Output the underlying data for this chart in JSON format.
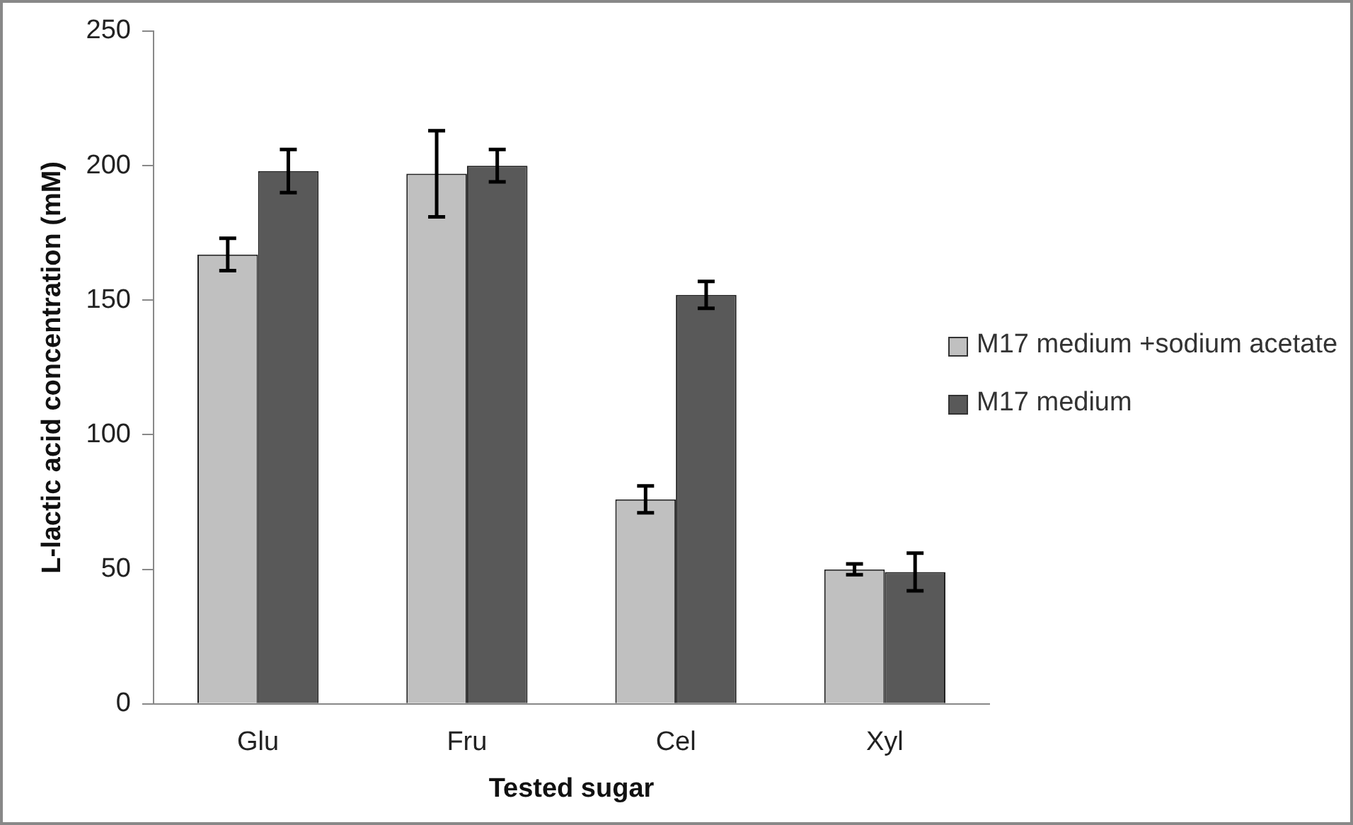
{
  "chart_data": {
    "type": "bar",
    "xlabel": "Tested sugar",
    "ylabel": "L-lactic acid concentration (mM)",
    "categories": [
      "Glu",
      "Fru",
      "Cel",
      "Xyl"
    ],
    "series": [
      {
        "name": "M17 medium +sodium acetate",
        "color": "#c0c0c0",
        "values": [
          167,
          197,
          76,
          50
        ],
        "errors": [
          6,
          16,
          5,
          2
        ]
      },
      {
        "name": "M17 medium",
        "color": "#595959",
        "values": [
          198,
          200,
          152,
          49
        ],
        "errors": [
          8,
          6,
          5,
          7
        ]
      }
    ],
    "ylim": [
      0,
      250
    ],
    "yticks": [
      0,
      50,
      100,
      150,
      200,
      250
    ],
    "grid": false,
    "legend": "right"
  }
}
